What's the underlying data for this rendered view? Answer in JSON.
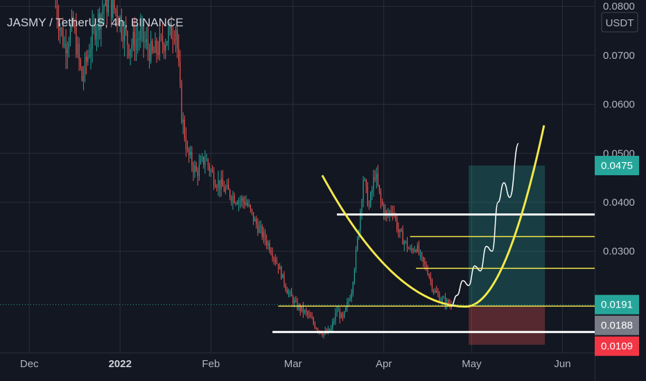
{
  "chart_data": {
    "type": "candlestick",
    "title": "JASMY / TetherUS, 4h, BINANCE",
    "currency": "USDT",
    "y_ticks": [
      "0.0800",
      "0.0700",
      "0.0600",
      "0.0500",
      "0.0400",
      "0.0300"
    ],
    "y_tick_values": [
      0.08,
      0.07,
      0.06,
      0.05,
      0.04,
      0.03
    ],
    "ylim": [
      0.0093,
      0.0813
    ],
    "x_ticks": [
      {
        "label": "Dec",
        "date": "2021-12-01",
        "bold": false
      },
      {
        "label": "2022",
        "date": "2022-01-01",
        "bold": true
      },
      {
        "label": "Feb",
        "date": "2022-02-01",
        "bold": false
      },
      {
        "label": "Mar",
        "date": "2022-03-01",
        "bold": false
      },
      {
        "label": "Apr",
        "date": "2022-04-01",
        "bold": false
      },
      {
        "label": "May",
        "date": "2022-05-01",
        "bold": false
      },
      {
        "label": "Jun",
        "date": "2022-06-01",
        "bold": false
      }
    ],
    "xlim": [
      "2021-11-21",
      "2022-06-12"
    ],
    "price_path": [
      [
        "2021-12-10",
        0.08
      ],
      [
        "2021-12-13",
        0.072
      ],
      [
        "2021-12-16",
        0.076
      ],
      [
        "2021-12-19",
        0.065
      ],
      [
        "2021-12-23",
        0.075
      ],
      [
        "2021-12-27",
        0.081
      ],
      [
        "2021-12-31",
        0.079
      ],
      [
        "2022-01-04",
        0.072
      ],
      [
        "2022-01-08",
        0.074
      ],
      [
        "2022-01-12",
        0.07
      ],
      [
        "2022-01-16",
        0.073
      ],
      [
        "2022-01-20",
        0.076
      ],
      [
        "2022-01-22",
        0.058
      ],
      [
        "2022-01-24",
        0.05
      ],
      [
        "2022-01-27",
        0.046
      ],
      [
        "2022-01-30",
        0.049
      ],
      [
        "2022-02-02",
        0.045
      ],
      [
        "2022-02-05",
        0.043
      ],
      [
        "2022-02-09",
        0.041
      ],
      [
        "2022-02-13",
        0.04
      ],
      [
        "2022-02-16",
        0.036
      ],
      [
        "2022-02-18",
        0.034
      ],
      [
        "2022-02-21",
        0.031
      ],
      [
        "2022-02-24",
        0.027
      ],
      [
        "2022-02-27",
        0.022
      ],
      [
        "2022-03-02",
        0.019
      ],
      [
        "2022-03-06",
        0.017
      ],
      [
        "2022-03-09",
        0.0145
      ],
      [
        "2022-03-12",
        0.013
      ],
      [
        "2022-03-14",
        0.014
      ],
      [
        "2022-03-16",
        0.018
      ],
      [
        "2022-03-18",
        0.016
      ],
      [
        "2022-03-21",
        0.022
      ],
      [
        "2022-03-23",
        0.032
      ],
      [
        "2022-03-25",
        0.045
      ],
      [
        "2022-03-27",
        0.039
      ],
      [
        "2022-03-29",
        0.046
      ],
      [
        "2022-03-31",
        0.04
      ],
      [
        "2022-04-02",
        0.037
      ],
      [
        "2022-04-04",
        0.039
      ],
      [
        "2022-04-06",
        0.034
      ],
      [
        "2022-04-08",
        0.032
      ],
      [
        "2022-04-10",
        0.03
      ],
      [
        "2022-04-12",
        0.031
      ],
      [
        "2022-04-14",
        0.028
      ],
      [
        "2022-04-16",
        0.026
      ],
      [
        "2022-04-18",
        0.022
      ],
      [
        "2022-04-21",
        0.02
      ],
      [
        "2022-04-24",
        0.019
      ]
    ],
    "projection_path": [
      [
        "2022-04-24",
        0.0188
      ],
      [
        "2022-04-26",
        0.021
      ],
      [
        "2022-04-28",
        0.024
      ],
      [
        "2022-04-30",
        0.023
      ],
      [
        "2022-05-02",
        0.027
      ],
      [
        "2022-05-04",
        0.026
      ],
      [
        "2022-05-06",
        0.031
      ],
      [
        "2022-05-08",
        0.03
      ],
      [
        "2022-05-10",
        0.04
      ],
      [
        "2022-05-12",
        0.044
      ],
      [
        "2022-05-14",
        0.041
      ],
      [
        "2022-05-17",
        0.052
      ]
    ],
    "cup_curve": {
      "vertex_date": "2022-04-29",
      "vertex_price": 0.0187,
      "left_date": "2022-03-11",
      "left_price": 0.0455,
      "end_date": "2022-05-26",
      "end_price": 0.0565
    },
    "horizontal_lines": [
      {
        "price": 0.0375,
        "from": "2022-03-16",
        "to": "2022-06-12",
        "color": "#ffffff",
        "width": 3
      },
      {
        "price": 0.033,
        "from": "2022-04-10",
        "to": "2022-06-12",
        "color": "#f5e94b",
        "width": 1.5
      },
      {
        "price": 0.0265,
        "from": "2022-04-12",
        "to": "2022-06-12",
        "color": "#f5e94b",
        "width": 1.5
      },
      {
        "price": 0.0188,
        "from": "2022-02-24",
        "to": "2022-06-12",
        "color": "#f5e94b",
        "width": 1.5
      },
      {
        "price": 0.0135,
        "from": "2022-02-22",
        "to": "2022-06-12",
        "color": "#ffffff",
        "width": 3
      }
    ],
    "position": {
      "from": "2022-04-30",
      "to": "2022-05-26",
      "entry": 0.0188,
      "target": 0.0475,
      "stop": 0.0109
    },
    "price_labels": [
      {
        "text": "0.0475",
        "value": 0.0475,
        "color": "#26a69a"
      },
      {
        "text": "0.0191",
        "value": 0.0191,
        "color": "#26a69a"
      },
      {
        "text": "0.0188",
        "value": 0.0188,
        "color": "#787b86"
      },
      {
        "text": "0.0109",
        "value": 0.0109,
        "color": "#f23645"
      }
    ],
    "last_price": 0.0191,
    "colors": {
      "background": "#131722",
      "up": "#26a69a",
      "down": "#ef5350",
      "cup": "#f5e94b",
      "grid": "#2a2e39",
      "text": "#b2b5be"
    }
  }
}
